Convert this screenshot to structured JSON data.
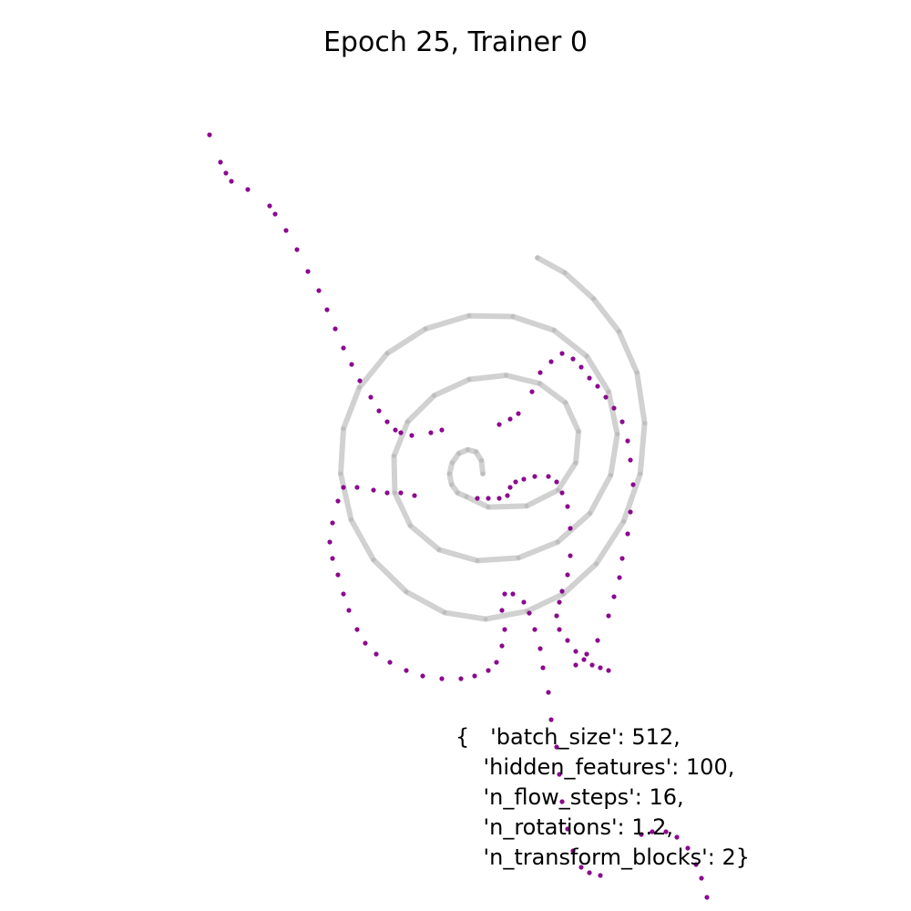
{
  "chart_data": {
    "type": "scatter",
    "title": "Epoch 25, Trainer 0",
    "xlabel": "",
    "ylabel": "",
    "axes_visible": false,
    "grid": false,
    "annotation_lines": [
      "{   'batch_size': 512,",
      "    'hidden_features': 100,",
      "    'n_flow_steps': 16,",
      "    'n_rotations': 1.2,",
      "    'n_transform_blocks': 2}"
    ],
    "series": [
      {
        "role": "target",
        "color": "#9a9a9a",
        "points": [
          [
            0.1,
            0.0
          ],
          [
            0.095,
            0.048
          ],
          [
            0.075,
            0.08
          ],
          [
            0.045,
            0.088
          ],
          [
            0.012,
            0.074
          ],
          [
            -0.012,
            0.04
          ],
          [
            -0.022,
            0.0
          ],
          [
            -0.014,
            -0.04
          ],
          [
            0.008,
            -0.07
          ],
          [
            0.04,
            -0.084
          ],
          [
            0.12,
            -0.122
          ],
          [
            0.26,
            -0.118
          ],
          [
            0.375,
            -0.06
          ],
          [
            0.44,
            0.04
          ],
          [
            0.45,
            0.155
          ],
          [
            0.402,
            0.26
          ],
          [
            0.308,
            0.33
          ],
          [
            0.185,
            0.36
          ],
          [
            0.05,
            0.345
          ],
          [
            -0.078,
            0.286
          ],
          [
            -0.175,
            0.19
          ],
          [
            -0.225,
            0.065
          ],
          [
            -0.222,
            -0.07
          ],
          [
            -0.165,
            -0.19
          ],
          [
            -0.06,
            -0.278
          ],
          [
            0.08,
            -0.318
          ],
          [
            0.23,
            -0.308
          ],
          [
            0.374,
            -0.25
          ],
          [
            0.492,
            -0.145
          ],
          [
            0.568,
            -0.005
          ],
          [
            0.592,
            0.145
          ],
          [
            0.56,
            0.3
          ],
          [
            0.48,
            0.43
          ],
          [
            0.36,
            0.525
          ],
          [
            0.21,
            0.575
          ],
          [
            0.05,
            0.578
          ],
          [
            -0.11,
            0.53
          ],
          [
            -0.25,
            0.44
          ],
          [
            -0.352,
            0.315
          ],
          [
            -0.41,
            0.165
          ],
          [
            -0.42,
            0.0
          ],
          [
            -0.382,
            -0.168
          ],
          [
            -0.3,
            -0.315
          ],
          [
            -0.18,
            -0.432
          ],
          [
            -0.04,
            -0.508
          ],
          [
            0.11,
            -0.532
          ],
          [
            0.262,
            -0.503
          ],
          [
            0.395,
            -0.44
          ],
          [
            0.515,
            -0.33
          ],
          [
            0.615,
            -0.175
          ],
          [
            0.676,
            0.0
          ],
          [
            0.692,
            0.185
          ],
          [
            0.664,
            0.37
          ],
          [
            0.598,
            0.52
          ],
          [
            0.505,
            0.64
          ],
          [
            0.4,
            0.735
          ],
          [
            0.3,
            0.79
          ]
        ]
      },
      {
        "role": "samples",
        "color": "#8b0a8e",
        "points": [
          [
            -0.9,
            1.24
          ],
          [
            -0.86,
            1.14
          ],
          [
            -0.84,
            1.1
          ],
          [
            -0.82,
            1.07
          ],
          [
            -0.76,
            1.04
          ],
          [
            -0.68,
            0.98
          ],
          [
            -0.66,
            0.95
          ],
          [
            -0.62,
            0.89
          ],
          [
            -0.58,
            0.82
          ],
          [
            -0.54,
            0.74
          ],
          [
            -0.5,
            0.67
          ],
          [
            -0.47,
            0.6
          ],
          [
            -0.44,
            0.53
          ],
          [
            -0.41,
            0.46
          ],
          [
            -0.38,
            0.4
          ],
          [
            -0.35,
            0.34
          ],
          [
            -0.31,
            0.28
          ],
          [
            -0.28,
            0.23
          ],
          [
            -0.25,
            0.19
          ],
          [
            -0.22,
            0.16
          ],
          [
            -0.2,
            0.15
          ],
          [
            -0.16,
            0.14
          ],
          [
            -0.09,
            0.15
          ],
          [
            -0.05,
            0.16
          ],
          [
            -0.36,
            -0.05
          ],
          [
            -0.3,
            -0.06
          ],
          [
            -0.25,
            -0.07
          ],
          [
            -0.2,
            -0.07
          ],
          [
            -0.15,
            -0.08
          ],
          [
            -0.41,
            -0.05
          ],
          [
            -0.43,
            -0.1
          ],
          [
            -0.45,
            -0.18
          ],
          [
            -0.46,
            -0.25
          ],
          [
            -0.45,
            -0.31
          ],
          [
            -0.43,
            -0.37
          ],
          [
            -0.41,
            -0.44
          ],
          [
            -0.39,
            -0.5
          ],
          [
            -0.36,
            -0.57
          ],
          [
            -0.33,
            -0.62
          ],
          [
            -0.29,
            -0.66
          ],
          [
            -0.24,
            -0.69
          ],
          [
            -0.18,
            -0.72
          ],
          [
            -0.12,
            -0.74
          ],
          [
            -0.05,
            -0.75
          ],
          [
            0.02,
            -0.75
          ],
          [
            0.07,
            -0.74
          ],
          [
            0.12,
            -0.72
          ],
          [
            0.15,
            -0.69
          ],
          [
            0.17,
            -0.63
          ],
          [
            0.18,
            -0.57
          ],
          [
            0.17,
            -0.5
          ],
          [
            0.18,
            -0.44
          ],
          [
            0.21,
            -0.44
          ],
          [
            0.25,
            -0.47
          ],
          [
            0.27,
            -0.51
          ],
          [
            0.29,
            -0.57
          ],
          [
            0.31,
            -0.64
          ],
          [
            0.32,
            -0.71
          ],
          [
            0.34,
            -0.8
          ],
          [
            0.35,
            -0.9
          ],
          [
            0.37,
            -1.0
          ],
          [
            0.38,
            -1.1
          ],
          [
            0.39,
            -1.2
          ],
          [
            0.41,
            -1.3
          ],
          [
            0.43,
            -1.38
          ],
          [
            0.46,
            -1.44
          ],
          [
            0.49,
            -1.46
          ],
          [
            0.53,
            -1.47
          ],
          [
            0.08,
            -0.09
          ],
          [
            0.12,
            -0.09
          ],
          [
            0.16,
            -0.09
          ],
          [
            0.19,
            -0.08
          ],
          [
            0.2,
            -0.05
          ],
          [
            0.22,
            -0.03
          ],
          [
            0.25,
            -0.02
          ],
          [
            0.29,
            -0.01
          ],
          [
            0.34,
            -0.01
          ],
          [
            0.37,
            -0.03
          ],
          [
            0.39,
            -0.07
          ],
          [
            0.41,
            -0.12
          ],
          [
            0.42,
            -0.2
          ],
          [
            0.42,
            -0.3
          ],
          [
            0.41,
            -0.37
          ],
          [
            0.39,
            -0.43
          ],
          [
            0.38,
            -0.47
          ],
          [
            0.37,
            -0.52
          ],
          [
            0.38,
            -0.57
          ],
          [
            0.41,
            -0.61
          ],
          [
            0.44,
            -0.65
          ],
          [
            0.47,
            -0.68
          ],
          [
            0.5,
            -0.7
          ],
          [
            0.53,
            -0.71
          ],
          [
            0.56,
            -0.72
          ],
          [
            0.16,
            0.18
          ],
          [
            0.2,
            0.2
          ],
          [
            0.23,
            0.22
          ],
          [
            0.28,
            0.3
          ],
          [
            0.31,
            0.37
          ],
          [
            0.35,
            0.41
          ],
          [
            0.39,
            0.44
          ],
          [
            0.43,
            0.42
          ],
          [
            0.46,
            0.39
          ],
          [
            0.49,
            0.35
          ],
          [
            0.52,
            0.32
          ],
          [
            0.55,
            0.28
          ],
          [
            0.58,
            0.24
          ],
          [
            0.61,
            0.19
          ],
          [
            0.63,
            0.12
          ],
          [
            0.64,
            0.05
          ],
          [
            0.65,
            -0.04
          ],
          [
            0.64,
            -0.14
          ],
          [
            0.63,
            -0.22
          ],
          [
            0.61,
            -0.31
          ],
          [
            0.6,
            -0.38
          ],
          [
            0.58,
            -0.45
          ],
          [
            0.56,
            -0.52
          ],
          [
            0.52,
            -0.61
          ],
          [
            0.48,
            -0.66
          ],
          [
            0.44,
            -0.7
          ],
          [
            0.68,
            -1.32
          ],
          [
            0.72,
            -1.31
          ],
          [
            0.77,
            -1.31
          ],
          [
            0.81,
            -1.33
          ],
          [
            0.85,
            -1.37
          ],
          [
            0.88,
            -1.43
          ],
          [
            0.9,
            -1.48
          ],
          [
            0.92,
            -1.55
          ],
          [
            0.94,
            -1.62
          ],
          [
            0.95,
            -1.7
          ]
        ]
      }
    ]
  }
}
